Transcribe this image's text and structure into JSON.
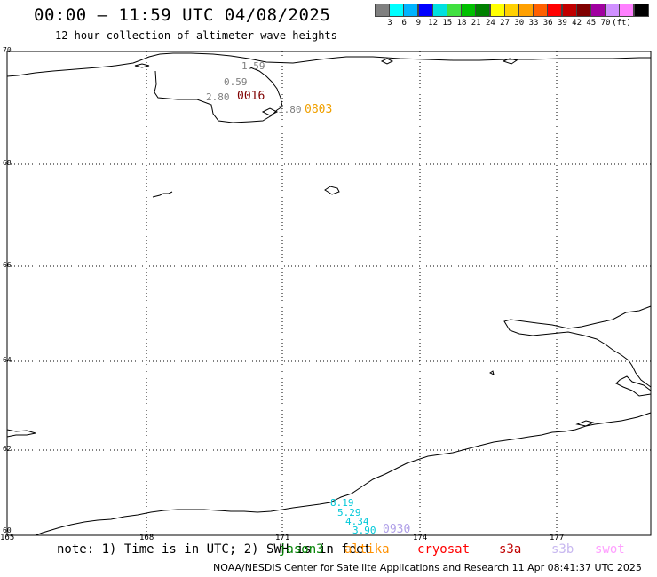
{
  "header": {
    "title": "00:00 – 11:59 UTC 04/08/2025",
    "subtitle": "12 hour collection of altimeter wave heights"
  },
  "color_scale": {
    "colors": [
      "#808080",
      "#00ffff",
      "#00b4ff",
      "#0000ff",
      "#00e0e0",
      "#40e040",
      "#00c000",
      "#008000",
      "#ffff00",
      "#ffd000",
      "#ffa000",
      "#ff6000",
      "#ff0000",
      "#c00000",
      "#800000",
      "#a000a0",
      "#d090ff",
      "#ff80ff",
      "#000000"
    ],
    "ticks": [
      "3",
      "6",
      "9",
      "12",
      "15",
      "18",
      "21",
      "24",
      "27",
      "30",
      "33",
      "36",
      "39",
      "42",
      "45",
      "70",
      "(ft)"
    ]
  },
  "map": {
    "lat_labels": [
      "70",
      "68",
      "66",
      "64",
      "62",
      "60"
    ],
    "lon_labels": [
      "165",
      "168",
      "171",
      "174",
      "177"
    ],
    "wave_heights": [
      {
        "value": "1.59",
        "color": "#808080"
      },
      {
        "value": "0.59",
        "color": "#808080"
      },
      {
        "value": "2.80",
        "color": "#808080"
      },
      {
        "value": "1.80",
        "color": "#808080"
      },
      {
        "value": "8.19",
        "color": "#00c8d8"
      },
      {
        "value": "5.29",
        "color": "#00c8d8"
      },
      {
        "value": "4.34",
        "color": "#00c8d8"
      },
      {
        "value": "3.90",
        "color": "#00c8d8"
      }
    ],
    "pass_times": [
      {
        "value": "0016",
        "color": "#800000"
      },
      {
        "value": "0803",
        "color": "#f0a000"
      },
      {
        "value": "0930",
        "color": "#b0a0e8"
      }
    ]
  },
  "footer": {
    "note": "note: 1) Time is in UTC; 2) SWH is in feet",
    "missions": [
      {
        "name": "jason3",
        "color": "#008000"
      },
      {
        "name": "altika",
        "color": "#ff9000"
      },
      {
        "name": "cryosat",
        "color": "#ff0000"
      },
      {
        "name": "s3a",
        "color": "#c00000"
      },
      {
        "name": "s3b",
        "color": "#c8b8f0"
      },
      {
        "name": "swot",
        "color": "#ffa0ff"
      }
    ],
    "credit": "NOAA/NESDIS Center for Satellite Applications and Research    11 Apr 08:41:37 UTC 2025"
  }
}
